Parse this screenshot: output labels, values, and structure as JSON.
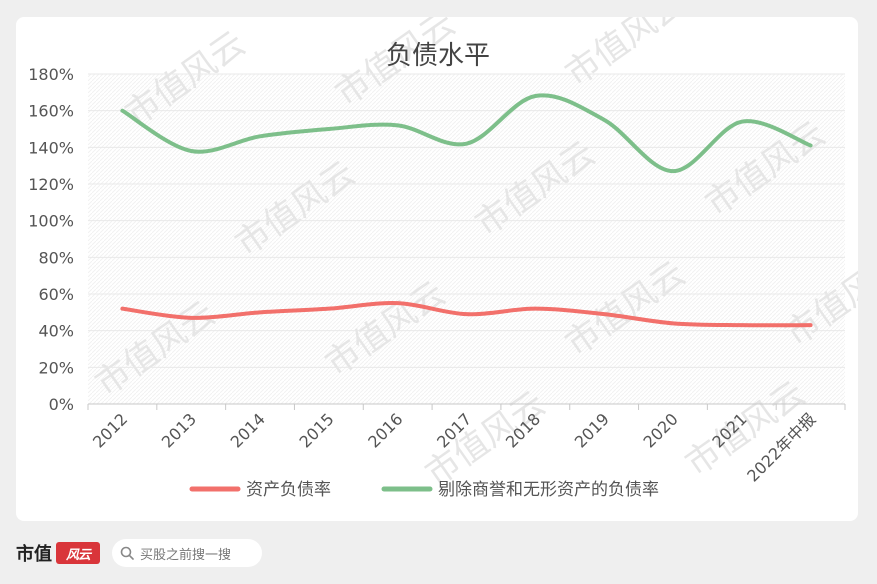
{
  "chart_data": {
    "type": "line",
    "title": "负债水平",
    "categories": [
      "2012",
      "2013",
      "2014",
      "2015",
      "2016",
      "2017",
      "2018",
      "2019",
      "2020",
      "2021",
      "2022年中报"
    ],
    "y_ticks": [
      "0%",
      "20%",
      "40%",
      "60%",
      "80%",
      "100%",
      "120%",
      "140%",
      "160%",
      "180%"
    ],
    "ylim": [
      0,
      180
    ],
    "grid": true,
    "legend_position": "bottom",
    "series": [
      {
        "name": "资产负债率",
        "color": "#f2706b",
        "values": [
          52,
          47,
          50,
          52,
          55,
          49,
          52,
          49,
          44,
          43,
          43
        ]
      },
      {
        "name": "剔除商誉和无形资产的负债率",
        "color": "#7dbf8a",
        "values": [
          160,
          138,
          146,
          150,
          152,
          142,
          168,
          155,
          127,
          154,
          141
        ]
      }
    ]
  },
  "watermark": {
    "text": "市值风云",
    "color": "#e6e6e6"
  },
  "footer": {
    "brand_text": "市值",
    "brand_badge": "风云",
    "search_placeholder": "买股之前搜一搜"
  }
}
